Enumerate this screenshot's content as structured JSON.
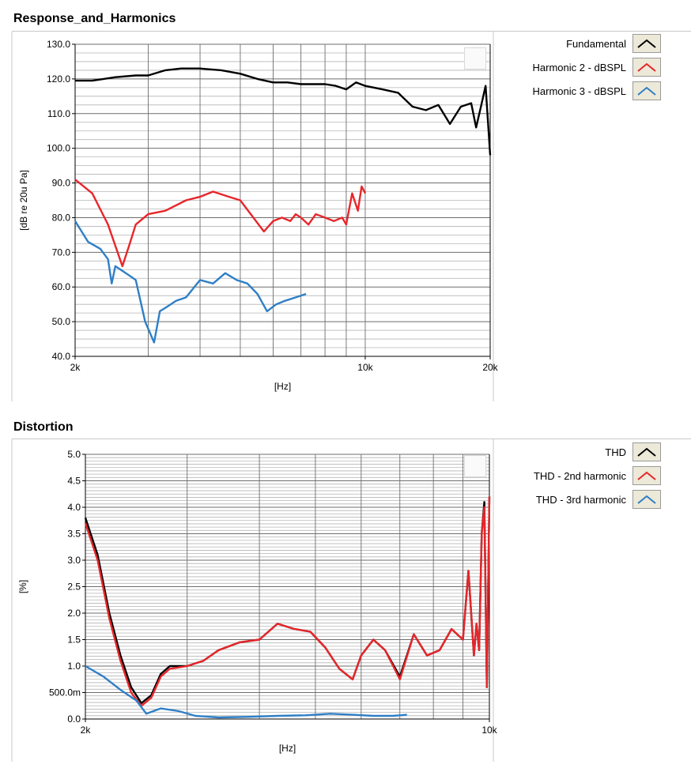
{
  "panels": [
    {
      "title": "Response_and_Harmonics",
      "legend": [
        {
          "label": "Fundamental",
          "color": "#000000"
        },
        {
          "label": "Harmonic 2 - dBSPL",
          "color": "#e8262a"
        },
        {
          "label": "Harmonic 3 - dBSPL",
          "color": "#2f7fc6"
        }
      ]
    },
    {
      "title": "Distortion",
      "legend": [
        {
          "label": "THD",
          "color": "#000000"
        },
        {
          "label": "THD - 2nd harmonic",
          "color": "#e8262a"
        },
        {
          "label": "THD - 3rd harmonic",
          "color": "#2f7fc6"
        }
      ]
    }
  ],
  "chart_data": [
    {
      "type": "line",
      "title": "Response_and_Harmonics",
      "xlabel": "[Hz]",
      "ylabel": "[dB re 20u Pa]",
      "xscale": "log",
      "xlim": [
        2000,
        20000
      ],
      "ylim": [
        40,
        130
      ],
      "x_ticks": [
        2000,
        10000,
        20000
      ],
      "x_tick_labels": [
        "2k",
        "10k",
        "20k"
      ],
      "y_ticks": [
        40,
        50,
        60,
        70,
        80,
        90,
        100,
        110,
        120,
        130
      ],
      "y_tick_labels": [
        "40.0",
        "50.0",
        "60.0",
        "70.0",
        "80.0",
        "90.0",
        "100.0",
        "110.0",
        "120.0",
        "130.0"
      ],
      "grid": true,
      "legend_position": "right",
      "series": [
        {
          "name": "Fundamental",
          "color": "#000000",
          "x": [
            2000,
            2200,
            2500,
            2800,
            3000,
            3300,
            3600,
            4000,
            4500,
            5000,
            5500,
            6000,
            6500,
            7000,
            7500,
            8000,
            8500,
            9000,
            9500,
            10000,
            11000,
            12000,
            13000,
            14000,
            15000,
            16000,
            17000,
            18000,
            18500,
            19000,
            19500,
            20000
          ],
          "y": [
            119.5,
            119.5,
            120.5,
            121,
            121,
            122.5,
            123,
            123,
            122.5,
            121.5,
            120,
            119,
            119,
            118.5,
            118.5,
            118.5,
            118,
            117,
            119,
            118,
            117,
            116,
            112,
            111,
            112.5,
            107,
            112,
            113,
            106,
            112,
            118,
            98
          ]
        },
        {
          "name": "Harmonic 2 - dBSPL",
          "color": "#e8262a",
          "x": [
            2000,
            2200,
            2400,
            2600,
            2700,
            2800,
            3000,
            3300,
            3700,
            4000,
            4300,
            4700,
            5000,
            5300,
            5700,
            6000,
            6300,
            6600,
            6800,
            7000,
            7300,
            7600,
            8000,
            8400,
            8800,
            9000,
            9300,
            9600,
            9800,
            10000
          ],
          "y": [
            91,
            87,
            78,
            66,
            72,
            78,
            81,
            82,
            85,
            86,
            87.5,
            86,
            85,
            81,
            76,
            79,
            80,
            79,
            81,
            80,
            78,
            81,
            80,
            79,
            80,
            78,
            87,
            82,
            89,
            87
          ]
        },
        {
          "name": "Harmonic 3 - dBSPL",
          "color": "#2f7fc6",
          "x": [
            2000,
            2150,
            2300,
            2400,
            2450,
            2500,
            2650,
            2800,
            2950,
            3100,
            3200,
            3300,
            3500,
            3700,
            4000,
            4300,
            4600,
            4900,
            5200,
            5500,
            5800,
            6100,
            6400,
            6800,
            7200
          ],
          "y": [
            79,
            73,
            71,
            68,
            61,
            66,
            64,
            62,
            50,
            44,
            53,
            54,
            56,
            57,
            62,
            61,
            64,
            62,
            61,
            58,
            53,
            55,
            56,
            57,
            58
          ]
        }
      ]
    },
    {
      "type": "line",
      "title": "Distortion",
      "xlabel": "[Hz]",
      "ylabel": "[%]",
      "xscale": "log",
      "xlim": [
        2000,
        10000
      ],
      "ylim": [
        0,
        5
      ],
      "x_ticks": [
        2000,
        10000
      ],
      "x_tick_labels": [
        "2k",
        "10k"
      ],
      "y_ticks": [
        0,
        0.5,
        1,
        1.5,
        2,
        2.5,
        3,
        3.5,
        4,
        4.5,
        5
      ],
      "y_tick_labels": [
        "0.0",
        "500.0m",
        "1.0",
        "1.5",
        "2.0",
        "2.5",
        "3.0",
        "3.5",
        "4.0",
        "4.5",
        "5.0"
      ],
      "grid": true,
      "legend_position": "right",
      "series": [
        {
          "name": "THD",
          "color": "#000000",
          "x": [
            2000,
            2100,
            2200,
            2300,
            2400,
            2500,
            2600,
            2700,
            2800,
            3000,
            3200,
            3400,
            3700,
            4000,
            4300,
            4600,
            4900,
            5200,
            5500,
            5800,
            6000,
            6300,
            6600,
            7000,
            7400,
            7800,
            8200,
            8600,
            9000,
            9200,
            9400,
            9500,
            9600,
            9700,
            9800,
            9900,
            10000
          ],
          "y": [
            3.8,
            3.1,
            2.0,
            1.2,
            0.6,
            0.3,
            0.45,
            0.85,
            1.0,
            1.0,
            1.1,
            1.3,
            1.45,
            1.5,
            1.8,
            1.7,
            1.65,
            1.35,
            0.95,
            0.75,
            1.2,
            1.5,
            1.3,
            0.8,
            1.6,
            1.2,
            1.3,
            1.7,
            1.5,
            2.8,
            1.2,
            1.8,
            1.3,
            3.5,
            4.1,
            0.6,
            4.2
          ]
        },
        {
          "name": "THD - 2nd harmonic",
          "color": "#e8262a",
          "x": [
            2000,
            2100,
            2200,
            2300,
            2400,
            2500,
            2600,
            2700,
            2800,
            3000,
            3200,
            3400,
            3700,
            4000,
            4300,
            4600,
            4900,
            5200,
            5500,
            5800,
            6000,
            6300,
            6600,
            7000,
            7400,
            7800,
            8200,
            8600,
            9000,
            9200,
            9400,
            9500,
            9600,
            9700,
            9800,
            9900,
            10000
          ],
          "y": [
            3.7,
            3.0,
            1.9,
            1.1,
            0.5,
            0.25,
            0.4,
            0.8,
            0.95,
            1.0,
            1.1,
            1.3,
            1.45,
            1.5,
            1.8,
            1.7,
            1.65,
            1.35,
            0.95,
            0.75,
            1.2,
            1.5,
            1.3,
            0.75,
            1.6,
            1.2,
            1.3,
            1.7,
            1.5,
            2.8,
            1.2,
            1.8,
            1.3,
            3.5,
            4.0,
            0.6,
            4.2
          ]
        },
        {
          "name": "THD - 3rd harmonic",
          "color": "#2f7fc6",
          "x": [
            2000,
            2150,
            2300,
            2450,
            2550,
            2700,
            2900,
            3100,
            3400,
            3800,
            4300,
            4800,
            5300,
            5800,
            6300,
            6800,
            7200
          ],
          "y": [
            1.0,
            0.8,
            0.55,
            0.35,
            0.1,
            0.2,
            0.15,
            0.06,
            0.03,
            0.04,
            0.06,
            0.07,
            0.1,
            0.08,
            0.06,
            0.06,
            0.08
          ]
        }
      ]
    }
  ]
}
